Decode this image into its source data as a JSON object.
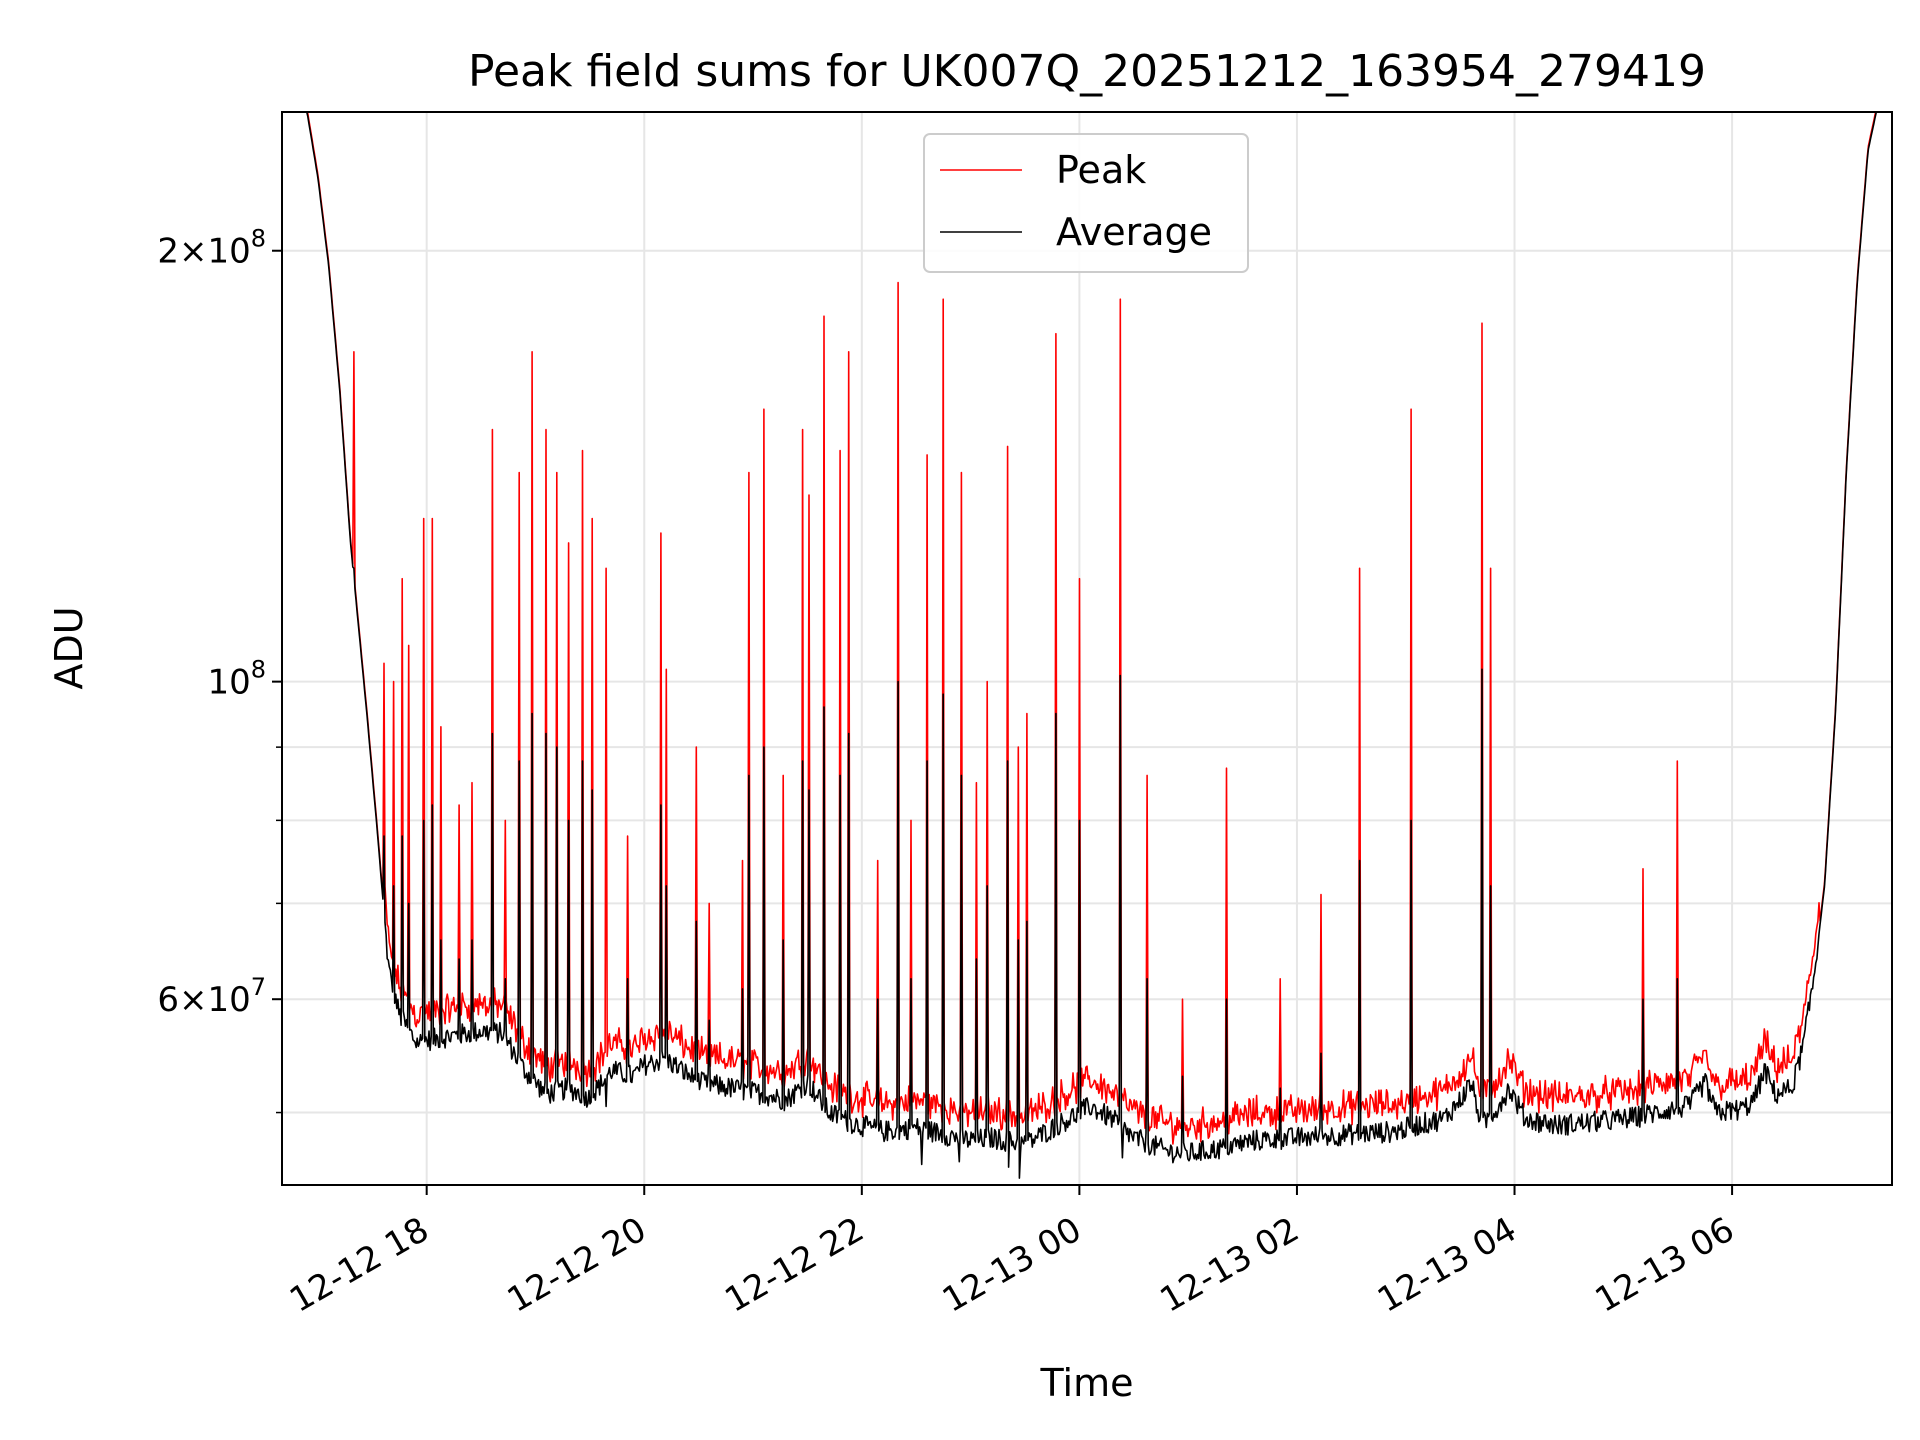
{
  "chart_data": {
    "type": "line",
    "title": "Peak field sums for UK007Q_20251212_163954_279419",
    "xlabel": "Time",
    "ylabel": "ADU",
    "yscale": "log",
    "ylim": [
      44500000,
      250000000
    ],
    "xlim_hours": [
      16.67,
      31.47
    ],
    "x_ticks": [
      {
        "hour": 18,
        "label": "12-12 18"
      },
      {
        "hour": 20,
        "label": "12-12 20"
      },
      {
        "hour": 22,
        "label": "12-12 22"
      },
      {
        "hour": 24,
        "label": "12-13 00"
      },
      {
        "hour": 26,
        "label": "12-13 02"
      },
      {
        "hour": 28,
        "label": "12-13 04"
      },
      {
        "hour": 30,
        "label": "12-13 06"
      }
    ],
    "y_major_ticks": [
      {
        "value": 60000000,
        "mantissa": "6",
        "exp": "7"
      },
      {
        "value": 100000000,
        "mantissa": "",
        "exp": "8"
      },
      {
        "value": 200000000,
        "mantissa": "2",
        "exp": "8"
      }
    ],
    "y_minor_ticks": [
      50000000,
      70000000,
      80000000,
      90000000
    ],
    "grid": true,
    "legend_position": "upper-center",
    "series": [
      {
        "name": "Peak",
        "color": "#ff0000"
      },
      {
        "name": "Average",
        "color": "#000000"
      }
    ],
    "average_baseline": [
      [
        16.67,
        255000000
      ],
      [
        16.9,
        250000000
      ],
      [
        17.0,
        225000000
      ],
      [
        17.1,
        195000000
      ],
      [
        17.2,
        160000000
      ],
      [
        17.3,
        125000000
      ],
      [
        17.45,
        95000000
      ],
      [
        17.55,
        78000000
      ],
      [
        17.65,
        63000000
      ],
      [
        17.75,
        58500000
      ],
      [
        17.9,
        56000000
      ],
      [
        18.2,
        56500000
      ],
      [
        18.5,
        57000000
      ],
      [
        18.7,
        56800000
      ],
      [
        18.9,
        53500000
      ],
      [
        19.1,
        51500000
      ],
      [
        19.3,
        52000000
      ],
      [
        19.5,
        51200000
      ],
      [
        19.7,
        53500000
      ],
      [
        19.9,
        53000000
      ],
      [
        20.0,
        54000000
      ],
      [
        20.2,
        54500000
      ],
      [
        20.5,
        52500000
      ],
      [
        20.8,
        52000000
      ],
      [
        21.1,
        51500000
      ],
      [
        21.3,
        51000000
      ],
      [
        21.5,
        52500000
      ],
      [
        21.7,
        50000000
      ],
      [
        21.9,
        49200000
      ],
      [
        22.2,
        48500000
      ],
      [
        22.5,
        48800000
      ],
      [
        22.8,
        48200000
      ],
      [
        23.0,
        47800000
      ],
      [
        23.2,
        48000000
      ],
      [
        23.5,
        47500000
      ],
      [
        23.7,
        48500000
      ],
      [
        23.9,
        49500000
      ],
      [
        24.1,
        50500000
      ],
      [
        24.3,
        49500000
      ],
      [
        24.5,
        48000000
      ],
      [
        24.8,
        47000000
      ],
      [
        25.0,
        46800000
      ],
      [
        25.3,
        47200000
      ],
      [
        25.6,
        47800000
      ],
      [
        26.0,
        48000000
      ],
      [
        26.5,
        48300000
      ],
      [
        26.9,
        48500000
      ],
      [
        27.1,
        49000000
      ],
      [
        27.35,
        49500000
      ],
      [
        27.5,
        51000000
      ],
      [
        27.6,
        52500000
      ],
      [
        27.7,
        49000000
      ],
      [
        27.85,
        50500000
      ],
      [
        27.95,
        52000000
      ],
      [
        28.1,
        49500000
      ],
      [
        28.4,
        49000000
      ],
      [
        28.8,
        49300000
      ],
      [
        29.1,
        49600000
      ],
      [
        29.4,
        50200000
      ],
      [
        29.6,
        50500000
      ],
      [
        29.75,
        52500000
      ],
      [
        29.85,
        50000000
      ],
      [
        30.1,
        50300000
      ],
      [
        30.2,
        51000000
      ],
      [
        30.3,
        53500000
      ],
      [
        30.4,
        51500000
      ],
      [
        30.55,
        52000000
      ],
      [
        30.65,
        55500000
      ],
      [
        30.75,
        62000000
      ],
      [
        30.85,
        72000000
      ],
      [
        30.95,
        95000000
      ],
      [
        31.05,
        140000000
      ],
      [
        31.15,
        190000000
      ],
      [
        31.25,
        235000000
      ],
      [
        31.35,
        255000000
      ],
      [
        31.47,
        255000000
      ]
    ],
    "spike_events": [
      [
        17.33,
        170000000,
        120000000
      ],
      [
        17.61,
        103000000,
        78000000
      ],
      [
        17.7,
        100000000,
        72000000
      ],
      [
        17.78,
        118000000,
        78000000
      ],
      [
        17.83,
        106000000,
        70000000
      ],
      [
        17.97,
        130000000,
        80000000
      ],
      [
        18.05,
        130000000,
        82000000
      ],
      [
        18.13,
        93000000,
        66000000
      ],
      [
        18.3,
        82000000,
        64000000
      ],
      [
        18.42,
        85000000,
        66000000
      ],
      [
        18.6,
        150000000,
        92000000
      ],
      [
        18.72,
        80000000,
        62000000
      ],
      [
        18.85,
        140000000,
        88000000
      ],
      [
        18.97,
        170000000,
        95000000
      ],
      [
        19.1,
        150000000,
        92000000
      ],
      [
        19.2,
        140000000,
        90000000
      ],
      [
        19.3,
        125000000,
        80000000
      ],
      [
        19.43,
        145000000,
        88000000
      ],
      [
        19.52,
        130000000,
        84000000
      ],
      [
        19.65,
        120000000,
        80000000
      ],
      [
        19.85,
        78000000,
        62000000
      ],
      [
        20.15,
        127000000,
        82000000
      ],
      [
        20.2,
        102000000,
        72000000
      ],
      [
        20.48,
        90000000,
        68000000
      ],
      [
        20.6,
        70000000,
        58000000
      ],
      [
        20.9,
        75000000,
        61000000
      ],
      [
        20.96,
        140000000,
        86000000
      ],
      [
        21.1,
        155000000,
        90000000
      ],
      [
        21.28,
        86000000,
        66000000
      ],
      [
        21.46,
        150000000,
        88000000
      ],
      [
        21.51,
        135000000,
        84000000
      ],
      [
        21.65,
        180000000,
        96000000
      ],
      [
        21.8,
        145000000,
        86000000
      ],
      [
        21.88,
        170000000,
        92000000
      ],
      [
        22.15,
        75000000,
        60000000
      ],
      [
        22.33,
        190000000,
        100000000
      ],
      [
        22.45,
        80000000,
        62000000
      ],
      [
        22.6,
        144000000,
        88000000
      ],
      [
        22.75,
        185000000,
        98000000
      ],
      [
        22.92,
        140000000,
        86000000
      ],
      [
        23.05,
        85000000,
        64000000
      ],
      [
        23.15,
        100000000,
        72000000
      ],
      [
        23.34,
        146000000,
        88000000
      ],
      [
        23.44,
        90000000,
        66000000
      ],
      [
        23.52,
        95000000,
        68000000
      ],
      [
        23.78,
        175000000,
        95000000
      ],
      [
        24.0,
        118000000,
        80000000
      ],
      [
        24.38,
        185000000,
        101000000
      ],
      [
        24.62,
        86000000,
        62000000
      ],
      [
        24.95,
        60000000,
        53000000
      ],
      [
        25.35,
        87000000,
        60000000
      ],
      [
        25.85,
        62000000,
        52000000
      ],
      [
        26.22,
        71000000,
        55000000
      ],
      [
        26.58,
        120000000,
        75000000
      ],
      [
        27.05,
        155000000,
        80000000
      ],
      [
        27.7,
        178000000,
        102000000
      ],
      [
        27.78,
        120000000,
        72000000
      ],
      [
        29.18,
        74000000,
        60000000
      ],
      [
        29.5,
        88000000,
        62000000
      ]
    ]
  }
}
